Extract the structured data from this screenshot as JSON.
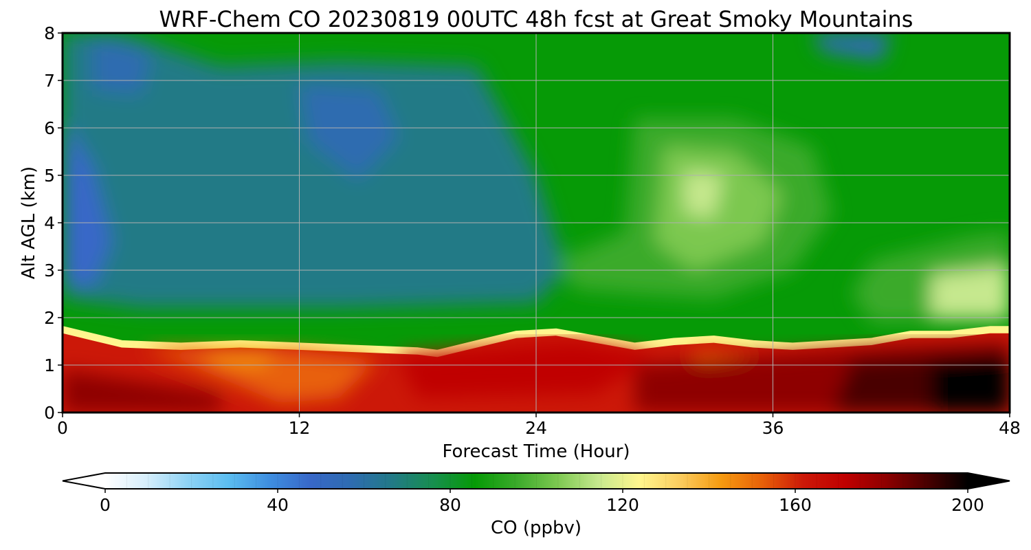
{
  "chart_data": {
    "type": "heatmap",
    "title": "WRF-Chem CO  20230819 00UTC 48h fcst at Great Smoky Mountains",
    "xlabel": "Forecast Time (Hour)",
    "ylabel": "Alt AGL (km)",
    "xlim": [
      0,
      48
    ],
    "ylim": [
      0,
      8
    ],
    "x_ticks": [
      0,
      12,
      24,
      36,
      48
    ],
    "x_tick_labels": [
      "0",
      "12",
      "24",
      "36",
      "48"
    ],
    "y_ticks": [
      0,
      1,
      2,
      3,
      4,
      5,
      6,
      7,
      8
    ],
    "y_tick_labels": [
      "0",
      "1",
      "2",
      "3",
      "4",
      "5",
      "6",
      "7",
      "8"
    ],
    "grid": true,
    "boundary_layer_top_km": {
      "x": [
        0,
        3,
        6,
        9,
        12,
        15,
        18,
        19,
        21,
        23,
        25,
        27,
        29,
        31,
        33,
        35,
        37,
        39,
        41,
        43,
        45,
        47,
        48
      ],
      "y": [
        1.75,
        1.45,
        1.4,
        1.45,
        1.4,
        1.35,
        1.3,
        1.25,
        1.45,
        1.65,
        1.7,
        1.55,
        1.4,
        1.5,
        1.55,
        1.45,
        1.4,
        1.45,
        1.5,
        1.65,
        1.65,
        1.75,
        1.75
      ]
    },
    "colorbar": {
      "label": "CO  (ppbv)",
      "min": 0,
      "max": 200,
      "ticks": [
        0,
        40,
        80,
        120,
        160,
        200
      ],
      "tick_labels": [
        "0",
        "40",
        "80",
        "120",
        "160",
        "200"
      ],
      "extend": "both",
      "colors": [
        "#ffffff",
        "#d6eefb",
        "#8fd3f5",
        "#5bbdf0",
        "#3e8ee0",
        "#3868c8",
        "#2e6cb0",
        "#227a86",
        "#178f4e",
        "#069a06",
        "#3aaa2a",
        "#7cc850",
        "#c6e88e",
        "#fff68e",
        "#fbcc5e",
        "#f59a10",
        "#e86008",
        "#cc1808",
        "#c00000",
        "#8e0000",
        "#4a0000",
        "#000000"
      ]
    }
  }
}
